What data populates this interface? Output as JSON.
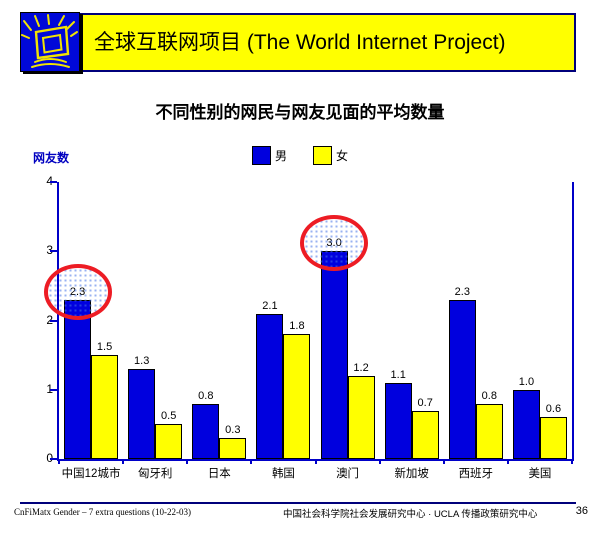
{
  "header": {
    "title": "全球互联网项目 (The World Internet Project)",
    "logo_icon": "radiating-computer-monitor"
  },
  "colors": {
    "banner_bg": "#FFFF00",
    "banner_border": "#00007B",
    "logo_bg": "#0008D8",
    "logo_stroke": "#F2E400",
    "axis": "#0000C8",
    "ylabel": "#0000C0",
    "bar_male": "#0000DE",
    "bar_female": "#FFFF00",
    "highlight_red": "#ED1C24"
  },
  "chart_data": {
    "type": "bar",
    "title": "不同性别的网民与网友见面的平均数量",
    "ylabel": "网友数",
    "xlabel": "",
    "categories": [
      "中国12城市",
      "匈牙利",
      "日本",
      "韩国",
      "澳门",
      "新加坡",
      "西班牙",
      "美国"
    ],
    "series": [
      {
        "name": "男",
        "color": "#0000DE",
        "values": [
          2.3,
          1.3,
          0.8,
          2.1,
          3.0,
          1.1,
          2.3,
          1.0
        ],
        "value_labels": [
          "2.3",
          "1.3",
          "0.8",
          "2.1",
          "3.0",
          "1.1",
          "2.3",
          "1.0"
        ]
      },
      {
        "name": "女",
        "color": "#FFFF00",
        "values": [
          1.5,
          0.5,
          0.3,
          1.8,
          1.2,
          0.7,
          0.8,
          0.6
        ],
        "value_labels": [
          "1.5",
          "0.5",
          "0.3",
          "1.8",
          "1.2",
          "0.7",
          "0.8",
          "0.6"
        ]
      }
    ],
    "ylim": [
      0,
      4
    ],
    "yticks": [
      "0",
      "1",
      "2",
      "3",
      "4"
    ],
    "grid": false,
    "legend_position": "top-center",
    "annotations": [
      {
        "type": "red-circle",
        "category": "中国12城市",
        "category_index": 0,
        "series": "男",
        "series_index": 0,
        "value": "2.3"
      },
      {
        "type": "red-circle",
        "category": "澳门",
        "category_index": 4,
        "series": "男",
        "series_index": 0,
        "value": "3.0"
      }
    ]
  },
  "footer": {
    "left": "CnFiMatx Gender – 7 extra questions (10-22-03)",
    "center": "中国社会科学院社会发展研究中心 · UCLA 传播政策研究中心",
    "page": "36"
  }
}
